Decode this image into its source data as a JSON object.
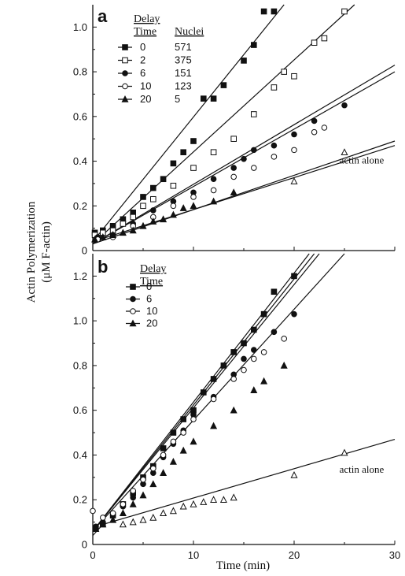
{
  "chart_data": [
    {
      "panel": "a",
      "type": "scatter",
      "xlim": [
        0,
        30
      ],
      "ylim": [
        0,
        1.1
      ],
      "x_ticks": [
        "0",
        "10",
        "20",
        "30"
      ],
      "y_ticks": [
        "0",
        "0.2",
        "0.4",
        "0.6",
        "0.8",
        "1.0"
      ],
      "legend": {
        "header_col1": [
          "Delay",
          "Time"
        ],
        "header_col2": "Nuclei",
        "placement": "top-left"
      },
      "series": [
        {
          "name": "0",
          "nuclei": "571",
          "marker": "square-filled",
          "points": [
            [
              0.2,
              0.08
            ],
            [
              1,
              0.09
            ],
            [
              2,
              0.11
            ],
            [
              3,
              0.14
            ],
            [
              4,
              0.17
            ],
            [
              5,
              0.24
            ],
            [
              6,
              0.28
            ],
            [
              7,
              0.32
            ],
            [
              8,
              0.39
            ],
            [
              9,
              0.44
            ],
            [
              10,
              0.49
            ],
            [
              11,
              0.68
            ],
            [
              12,
              0.68
            ],
            [
              13,
              0.74
            ],
            [
              15,
              0.85
            ],
            [
              16,
              0.92
            ],
            [
              17,
              1.07
            ],
            [
              18,
              1.07
            ]
          ],
          "fit": [
            [
              0,
              0.04
            ],
            [
              19,
              1.1
            ]
          ]
        },
        {
          "name": "2",
          "nuclei": "375",
          "marker": "square-open",
          "points": [
            [
              0.2,
              0.07
            ],
            [
              1,
              0.08
            ],
            [
              2,
              0.09
            ],
            [
              3,
              0.12
            ],
            [
              4,
              0.15
            ],
            [
              5,
              0.2
            ],
            [
              6,
              0.23
            ],
            [
              8,
              0.29
            ],
            [
              10,
              0.37
            ],
            [
              12,
              0.44
            ],
            [
              14,
              0.5
            ],
            [
              16,
              0.61
            ],
            [
              18,
              0.73
            ],
            [
              19,
              0.8
            ],
            [
              20,
              0.78
            ],
            [
              22,
              0.93
            ],
            [
              23,
              0.95
            ],
            [
              25,
              1.07
            ]
          ],
          "fit": [
            [
              0,
              0.03
            ],
            [
              26,
              1.1
            ]
          ]
        },
        {
          "name": "6",
          "nuclei": "151",
          "marker": "circle-filled",
          "points": [
            [
              0.5,
              0.06
            ],
            [
              2,
              0.07
            ],
            [
              4,
              0.12
            ],
            [
              6,
              0.18
            ],
            [
              8,
              0.22
            ],
            [
              10,
              0.26
            ],
            [
              12,
              0.32
            ],
            [
              14,
              0.37
            ],
            [
              15,
              0.41
            ],
            [
              16,
              0.45
            ],
            [
              18,
              0.47
            ],
            [
              20,
              0.52
            ],
            [
              22,
              0.58
            ],
            [
              25,
              0.65
            ]
          ],
          "fit": [
            [
              0,
              0.03
            ],
            [
              30,
              0.83
            ]
          ]
        },
        {
          "name": "10",
          "nuclei": "123",
          "marker": "circle-open",
          "points": [
            [
              0.5,
              0.05
            ],
            [
              2,
              0.06
            ],
            [
              4,
              0.11
            ],
            [
              6,
              0.15
            ],
            [
              8,
              0.2
            ],
            [
              10,
              0.24
            ],
            [
              12,
              0.27
            ],
            [
              14,
              0.33
            ],
            [
              16,
              0.37
            ],
            [
              18,
              0.42
            ],
            [
              20,
              0.45
            ],
            [
              22,
              0.53
            ],
            [
              23,
              0.55
            ]
          ],
          "fit": [
            [
              0,
              0.03
            ],
            [
              30,
              0.8
            ]
          ]
        },
        {
          "name": "20",
          "nuclei": "5",
          "marker": "triangle-filled",
          "points": [
            [
              0.2,
              0.05
            ],
            [
              1,
              0.06
            ],
            [
              2,
              0.07
            ],
            [
              3,
              0.08
            ],
            [
              4,
              0.09
            ],
            [
              5,
              0.11
            ],
            [
              6,
              0.13
            ],
            [
              7,
              0.14
            ],
            [
              8,
              0.16
            ],
            [
              9,
              0.19
            ],
            [
              10,
              0.2
            ],
            [
              12,
              0.22
            ],
            [
              14,
              0.26
            ]
          ],
          "fit": [
            [
              0,
              0.04
            ],
            [
              30,
              0.47
            ]
          ]
        },
        {
          "name": "actin alone",
          "marker": "triangle-open",
          "points": [
            [
              20,
              0.31
            ],
            [
              25,
              0.44
            ]
          ],
          "fit": [
            [
              0,
              0.03
            ],
            [
              30,
              0.49
            ]
          ]
        }
      ],
      "annotations": [
        {
          "text": "actin alone",
          "x": 24.5,
          "y": 0.39
        }
      ]
    },
    {
      "panel": "b",
      "type": "scatter",
      "xlim": [
        0,
        30
      ],
      "ylim": [
        0,
        1.3
      ],
      "x_ticks": [
        "0",
        "10",
        "20",
        "30"
      ],
      "y_ticks": [
        "0",
        "0.2",
        "0.4",
        "0.6",
        "0.8",
        "1.0",
        "1.2"
      ],
      "legend": {
        "header_col1": [
          "Delay",
          "Time"
        ],
        "placement": "top-left"
      },
      "series": [
        {
          "name": "0",
          "marker": "square-filled",
          "points": [
            [
              0.3,
              0.07
            ],
            [
              1,
              0.09
            ],
            [
              2,
              0.13
            ],
            [
              3,
              0.18
            ],
            [
              4,
              0.23
            ],
            [
              5,
              0.3
            ],
            [
              6,
              0.35
            ],
            [
              7,
              0.43
            ],
            [
              8,
              0.5
            ],
            [
              9,
              0.56
            ],
            [
              10,
              0.6
            ],
            [
              11,
              0.68
            ],
            [
              12,
              0.74
            ],
            [
              13,
              0.8
            ],
            [
              14,
              0.86
            ],
            [
              15,
              0.9
            ],
            [
              16,
              0.96
            ],
            [
              17,
              1.03
            ],
            [
              18,
              1.13
            ],
            [
              20,
              1.2
            ]
          ],
          "fit": [
            [
              0,
              0.06
            ],
            [
              21.5,
              1.3
            ]
          ]
        },
        {
          "name": "6",
          "marker": "circle-filled",
          "points": [
            [
              0.3,
              0.08
            ],
            [
              1,
              0.1
            ],
            [
              2,
              0.13
            ],
            [
              3,
              0.17
            ],
            [
              4,
              0.21
            ],
            [
              5,
              0.27
            ],
            [
              6,
              0.32
            ],
            [
              7,
              0.39
            ],
            [
              8,
              0.45
            ],
            [
              9,
              0.51
            ],
            [
              10,
              0.58
            ],
            [
              12,
              0.66
            ],
            [
              14,
              0.76
            ],
            [
              15,
              0.83
            ],
            [
              16,
              0.87
            ],
            [
              18,
              0.95
            ],
            [
              20,
              1.03
            ]
          ],
          "fit": [
            [
              0,
              0.06
            ],
            [
              22,
              1.3
            ]
          ]
        },
        {
          "name": "10",
          "marker": "circle-open",
          "points": [
            [
              0,
              0.15
            ],
            [
              1,
              0.12
            ],
            [
              2,
              0.14
            ],
            [
              3,
              0.18
            ],
            [
              4,
              0.24
            ],
            [
              5,
              0.29
            ],
            [
              6,
              0.34
            ],
            [
              7,
              0.4
            ],
            [
              8,
              0.46
            ],
            [
              9,
              0.5
            ],
            [
              10,
              0.56
            ],
            [
              12,
              0.65
            ],
            [
              14,
              0.74
            ],
            [
              15,
              0.78
            ],
            [
              16,
              0.83
            ],
            [
              17,
              0.86
            ],
            [
              19,
              0.92
            ]
          ],
          "fit": [
            [
              0,
              0.06
            ],
            [
              22.5,
              1.3
            ]
          ]
        },
        {
          "name": "20",
          "marker": "triangle-filled",
          "points": [
            [
              0.3,
              0.07
            ],
            [
              1,
              0.09
            ],
            [
              2,
              0.11
            ],
            [
              3,
              0.14
            ],
            [
              4,
              0.18
            ],
            [
              5,
              0.22
            ],
            [
              6,
              0.27
            ],
            [
              7,
              0.32
            ],
            [
              8,
              0.37
            ],
            [
              9,
              0.42
            ],
            [
              10,
              0.46
            ],
            [
              12,
              0.53
            ],
            [
              14,
              0.6
            ],
            [
              16,
              0.69
            ],
            [
              17,
              0.73
            ],
            [
              19,
              0.8
            ]
          ],
          "fit": [
            [
              0,
              0.06
            ],
            [
              25,
              1.3
            ]
          ]
        },
        {
          "name": "actin alone",
          "marker": "triangle-open",
          "points": [
            [
              3,
              0.09
            ],
            [
              4,
              0.1
            ],
            [
              5,
              0.11
            ],
            [
              6,
              0.12
            ],
            [
              7,
              0.14
            ],
            [
              8,
              0.15
            ],
            [
              9,
              0.17
            ],
            [
              10,
              0.18
            ],
            [
              11,
              0.19
            ],
            [
              12,
              0.2
            ],
            [
              13,
              0.2
            ],
            [
              14,
              0.21
            ],
            [
              20,
              0.31
            ],
            [
              25,
              0.41
            ]
          ],
          "fit": [
            [
              0,
              0.04
            ],
            [
              1,
              0.09
            ],
            [
              30,
              0.47
            ]
          ]
        }
      ],
      "annotations": [
        {
          "text": "actin alone",
          "x": 24.5,
          "y": 0.32
        }
      ]
    }
  ],
  "labels": {
    "panel_a": "a",
    "panel_b": "b",
    "ylabel_line1": "Actin Polymerization",
    "ylabel_line2": "(μM F-actin)",
    "xlabel": "Time (min)",
    "legend_delay": "Delay",
    "legend_time": "Time",
    "legend_nuclei": "Nuclei"
  }
}
